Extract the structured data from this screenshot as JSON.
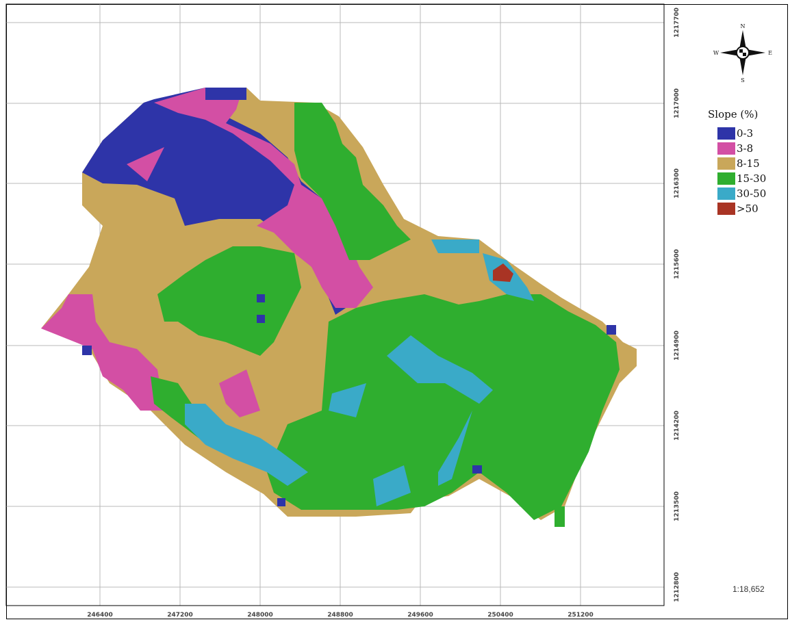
{
  "map": {
    "x_ticks": [
      "246400",
      "247200",
      "248000",
      "248800",
      "249600",
      "250400",
      "251200"
    ],
    "y_ticks": [
      "1217700",
      "1217000",
      "1216300",
      "1215600",
      "1214900",
      "1214200",
      "1213500",
      "1212800"
    ]
  },
  "legend": {
    "title": "Slope (%)",
    "items": [
      {
        "label": "0-3",
        "color": "#2e34a8"
      },
      {
        "label": "3-8",
        "color": "#d34fa4"
      },
      {
        "label": "8-15",
        "color": "#c9a75a"
      },
      {
        "label": "15-30",
        "color": "#2fae2f"
      },
      {
        "label": "30-50",
        "color": "#3aaac8"
      },
      {
        "label": ">50",
        "color": "#a93424"
      }
    ]
  },
  "north_arrow": {
    "n": "N",
    "s": "S",
    "e": "E",
    "w": "W"
  },
  "scale": "1:18,652"
}
